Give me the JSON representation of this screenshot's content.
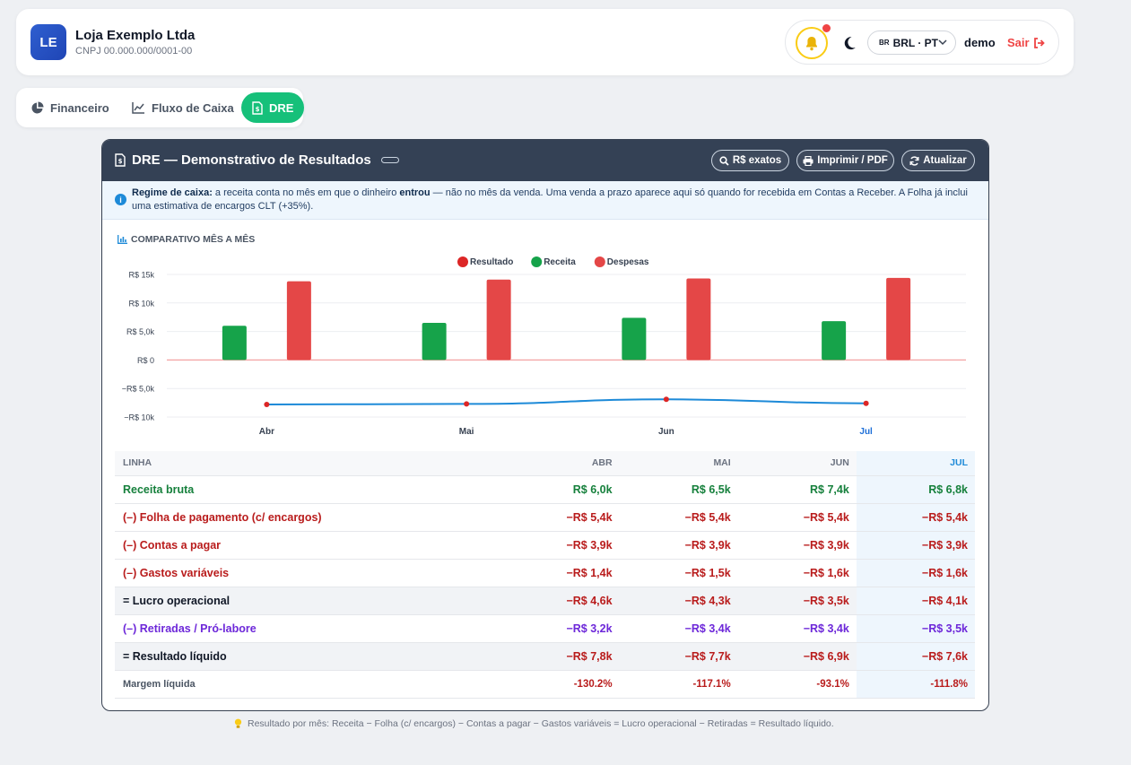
{
  "header": {
    "logo_initials": "LE",
    "company_name": "Loja Exemplo Ltda",
    "company_cnpj": "CNPJ 00.000.000/0001-00",
    "lang_flag": "BR",
    "lang_label": "BRL · PT",
    "user": "demo",
    "logout_label": "Sair"
  },
  "tabs": [
    {
      "label": "Financeiro",
      "icon": "pie-chart-icon"
    },
    {
      "label": "Fluxo de Caixa",
      "icon": "line-chart-icon"
    },
    {
      "label": "DRE",
      "icon": "document-icon",
      "active": true
    }
  ],
  "dre": {
    "title": "DRE — Demonstrativo de Resultados",
    "buttons": {
      "exact": "R$ exatos",
      "print": "Imprimir / PDF",
      "refresh": "Atualizar"
    },
    "info": {
      "lead": "Regime de caixa:",
      "t1": " a receita conta no mês em que o dinheiro ",
      "strong": "entrou",
      "t2": " — não no mês da venda. Uma venda a prazo aparece aqui só quando for recebida em Contas a Receber. A Folha já inclui uma estimativa de encargos CLT (+35%)."
    },
    "chart_title": "COMPARATIVO MÊS A MÊS",
    "table": {
      "headers": [
        "LINHA",
        "ABR",
        "MAI",
        "JUN",
        "JUL"
      ],
      "rows": [
        {
          "label": "Receita bruta",
          "values": [
            "R$ 6,0k",
            "R$ 6,5k",
            "R$ 7,4k",
            "R$ 6,8k"
          ],
          "color": "#16803c",
          "sum": false
        },
        {
          "label": "(–) Folha de pagamento (c/ encargos)",
          "values": [
            "−R$ 5,4k",
            "−R$ 5,4k",
            "−R$ 5,4k",
            "−R$ 5,4k"
          ],
          "color": "#b91c1c",
          "sum": false
        },
        {
          "label": "(–) Contas a pagar",
          "values": [
            "−R$ 3,9k",
            "−R$ 3,9k",
            "−R$ 3,9k",
            "−R$ 3,9k"
          ],
          "color": "#b91c1c",
          "sum": false
        },
        {
          "label": "(–) Gastos variáveis",
          "values": [
            "−R$ 1,4k",
            "−R$ 1,5k",
            "−R$ 1,6k",
            "−R$ 1,6k"
          ],
          "color": "#b91c1c",
          "sum": false
        },
        {
          "label": "= Lucro operacional",
          "values": [
            "−R$ 4,6k",
            "−R$ 4,3k",
            "−R$ 3,5k",
            "−R$ 4,1k"
          ],
          "color": "#b91c1c",
          "sum": true
        },
        {
          "label": "(–) Retiradas / Pró-labore",
          "values": [
            "−R$ 3,2k",
            "−R$ 3,4k",
            "−R$ 3,4k",
            "−R$ 3,5k"
          ],
          "color": "#6d28d9",
          "sum": false
        },
        {
          "label": "= Resultado líquido",
          "values": [
            "−R$ 7,8k",
            "−R$ 7,7k",
            "−R$ 6,9k",
            "−R$ 7,6k"
          ],
          "color": "#b91c1c",
          "sum": true
        },
        {
          "label": "Margem líquida",
          "values": [
            "-130.2%",
            "-117.1%",
            "-93.1%",
            "-111.8%"
          ],
          "color": "#b91c1c",
          "sum": false,
          "label_color": "#4b5563",
          "small": true
        }
      ]
    }
  },
  "footnote": "Resultado por mês: Receita − Folha (c/ encargos) − Contas a pagar − Gastos variáveis = Lucro operacional − Retiradas = Resultado líquido.",
  "chart_data": {
    "type": "bar",
    "categories": [
      "Abr",
      "Mai",
      "Jun",
      "Jul"
    ],
    "highlight_category": "Jul",
    "series": [
      {
        "name": "Resultado",
        "kind": "line",
        "color": "#dc2626",
        "line_color": "#1d8ad8",
        "values": [
          -7800,
          -7700,
          -6900,
          -7600
        ]
      },
      {
        "name": "Receita",
        "kind": "bar",
        "color": "#16a34a",
        "values": [
          6000,
          6500,
          7400,
          6800
        ]
      },
      {
        "name": "Despesas",
        "kind": "bar",
        "color": "#e44747",
        "values": [
          13800,
          14100,
          14300,
          14400
        ]
      }
    ],
    "ylim": [
      -10000,
      15000
    ],
    "yticks": [
      {
        "v": 15000,
        "label": "R$ 15k"
      },
      {
        "v": 10000,
        "label": "R$ 10k"
      },
      {
        "v": 5000,
        "label": "R$ 5,0k"
      },
      {
        "v": 0,
        "label": "R$ 0"
      },
      {
        "v": -5000,
        "label": "−R$ 5,0k"
      },
      {
        "v": -10000,
        "label": "−R$ 10k"
      }
    ],
    "grid": true,
    "legend": "top-center"
  }
}
